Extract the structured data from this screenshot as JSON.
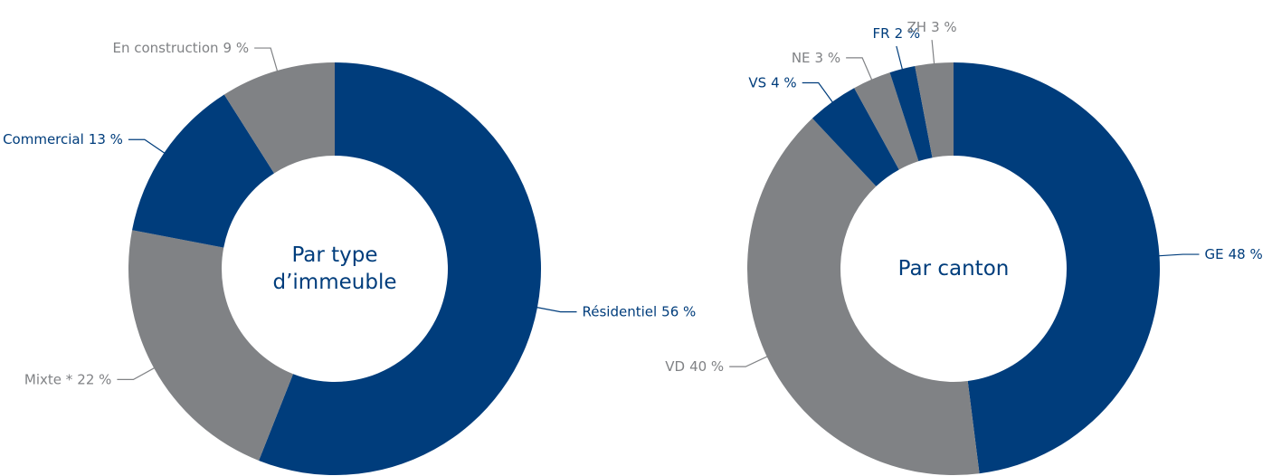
{
  "chart_data": [
    {
      "type": "donut",
      "title": "Par type d’immeuble",
      "categories": [
        "Résidentiel",
        "Mixte *",
        "Commercial",
        "En construction"
      ],
      "values": [
        56,
        22,
        13,
        9
      ],
      "value_labels": [
        "56 %",
        "22 %",
        "13 %",
        "9 %"
      ],
      "colors": [
        "#003d7c",
        "#808285",
        "#003d7c",
        "#808285"
      ]
    },
    {
      "type": "donut",
      "title": "Par canton",
      "categories": [
        "GE",
        "VD",
        "VS",
        "NE",
        "FR",
        "ZH"
      ],
      "values": [
        48,
        40,
        4,
        3,
        2,
        3
      ],
      "value_labels": [
        "48 %",
        "40 %",
        "4 %",
        "3 %",
        "2 %",
        "3 %"
      ],
      "colors": [
        "#003d7c",
        "#808285",
        "#003d7c",
        "#808285",
        "#003d7c",
        "#808285"
      ]
    }
  ]
}
